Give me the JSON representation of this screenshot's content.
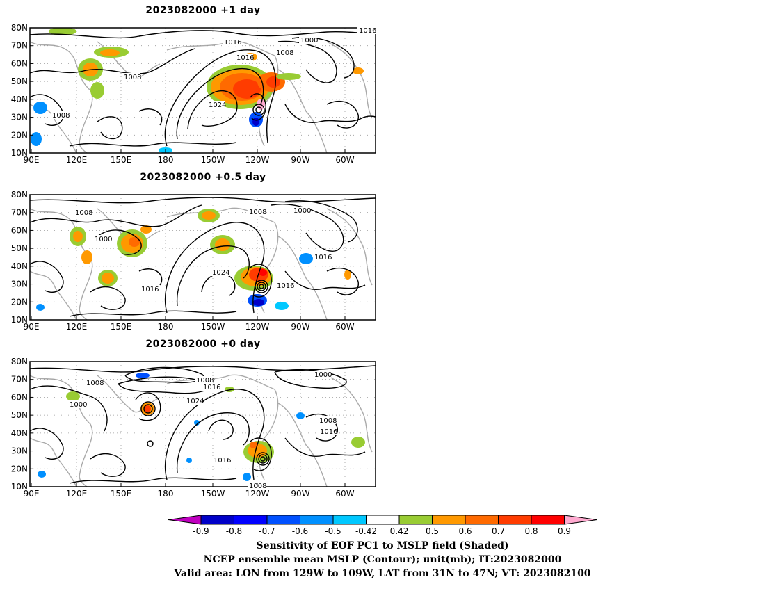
{
  "panels": [
    {
      "title": "2023082000  +1 day",
      "contour_labels": [
        "1016",
        "1016",
        "1008",
        "1000",
        "1016",
        "1008",
        "1024",
        "1008"
      ]
    },
    {
      "title": "2023082000  +0.5 day",
      "contour_labels": [
        "1008",
        "1008",
        "1000",
        "1000",
        "1016",
        "1024",
        "1016",
        "1016"
      ]
    },
    {
      "title": "2023082000  +0 day",
      "contour_labels": [
        "1008",
        "1016",
        "1000",
        "1008",
        "1000",
        "1024",
        "1008",
        "1016",
        "1016",
        "1008"
      ]
    }
  ],
  "axes": {
    "lat_ticks": [
      "80N",
      "70N",
      "60N",
      "50N",
      "40N",
      "30N",
      "20N",
      "10N"
    ],
    "lon_ticks": [
      "90E",
      "120E",
      "150E",
      "180",
      "150W",
      "120W",
      "90W",
      "60W"
    ]
  },
  "colorbar": {
    "labels": [
      "-0.9",
      "-0.8",
      "-0.7",
      "-0.6",
      "-0.5",
      "-0.42",
      "0.42",
      "0.5",
      "0.6",
      "0.7",
      "0.8",
      "0.9"
    ],
    "colors": [
      "#c000c0",
      "#0000c8",
      "#0000ff",
      "#0050ff",
      "#0090ff",
      "#00c8ff",
      "#ffffff",
      "#99cc33",
      "#ff9900",
      "#ff6a00",
      "#ff3c00",
      "#ff0000",
      "#ffaad0"
    ]
  },
  "caption": {
    "line1": "Sensitivity of EOF PC1 to MSLP field (Shaded)",
    "line2": "NCEP ensemble mean MSLP (Contour); unit(mb); IT:2023082000",
    "line3": "Valid area: LON from 129W to 109W, LAT from 31N to 47N; VT: 2023082100"
  }
}
